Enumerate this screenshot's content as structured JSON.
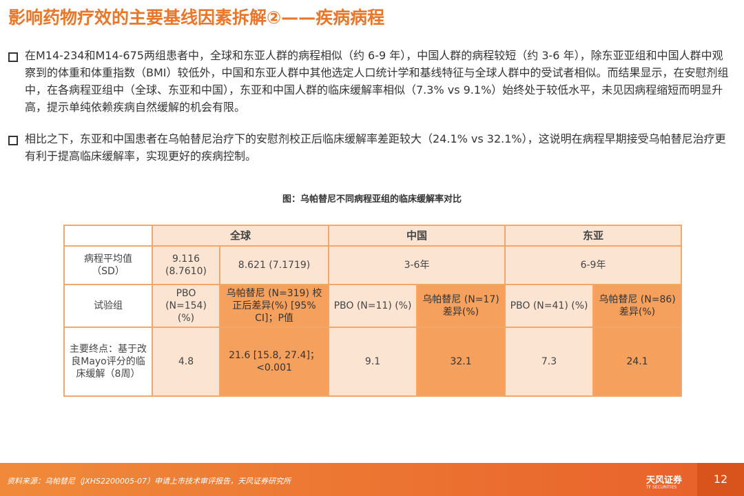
{
  "header": {
    "title": "影响药物疗效的主要基线因素拆解②——疾病病程"
  },
  "bullets": [
    "在M14-234和M14-675两组患者中，全球和东亚人群的病程相似（约 6-9 年），中国人群的病程较短（约 3-6 年），除东亚亚组和中国人群中观察到的体重和体重指数（BMI）较低外，中国和东亚人群中其他选定人口统计学和基线特征与全球人群中的受试者相似。而结果显示，在安慰剂组中，在各病程亚组中（全球、东亚和中国），东亚和中国人群的临床缓解率相似（7.3% vs 9.1%）始终处于较低水平，未见因病程缩短而明显升高，提示单纯依赖疾病自然缓解的机会有限。",
    "相比之下，东亚和中国患者在乌帕替尼治疗下的安慰剂校正后临床缓解率差距较大（24.1% vs 32.1%），这说明在病程早期接受乌帕替尼治疗更有利于提高临床缓解率，实现更好的疾病控制。"
  ],
  "table": {
    "caption": "图：乌帕替尼不同病程亚组的临床缓解率对比",
    "groups": [
      "全球",
      "中国",
      "东亚"
    ],
    "rows": [
      [
        "病程平均值（SD）",
        "9.116 (8.7610)",
        "8.621 (7.1719)",
        "3-6年",
        "6-9年"
      ],
      [
        "试验组",
        "PBO (N=154) (%)",
        "乌帕替尼 (N=319) 校正后差异(%) [95% CI]；P值",
        "PBO (N=11) (%)",
        "乌帕替尼 (N=17) 差异(%)",
        "PBO (N=41) (%)",
        "乌帕替尼 (N=86) 差异(%)"
      ],
      [
        "主要终点：基于改良Mayo评分的临床缓解（8周）",
        "4.8",
        "21.6 [15.8, 27.4]；<0.001",
        "9.1",
        "32.1",
        "7.3",
        "24.1"
      ]
    ]
  },
  "footer": {
    "source": "资料来源：乌帕替尼（JXHS2200005-07）申请上市技术审评报告，天风证券研究所",
    "logo": "天风证券",
    "logo_sub": "TF SECURITIES",
    "page": "12"
  }
}
